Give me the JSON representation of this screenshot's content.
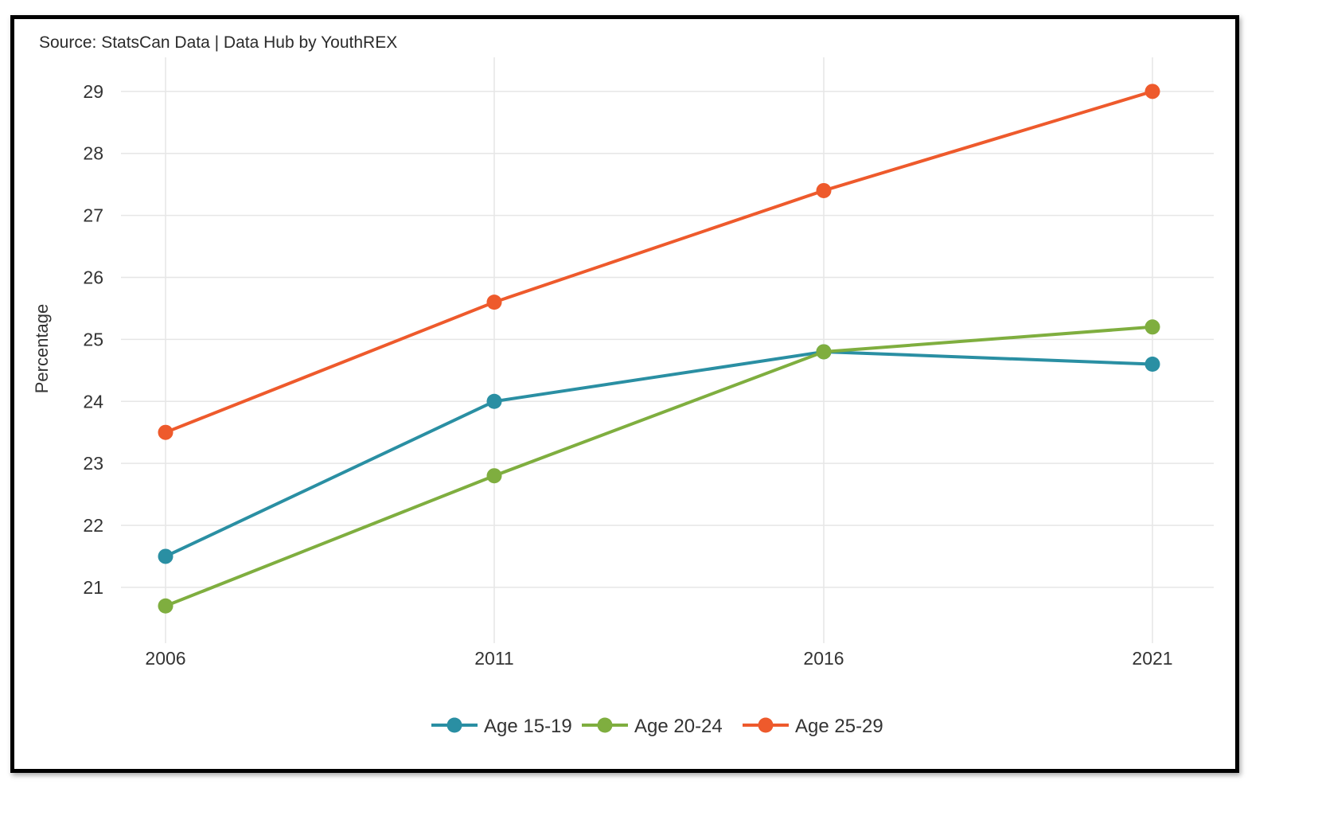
{
  "source_note": "Source: StatsCan Data | Data Hub by YouthREX",
  "chart_data": {
    "type": "line",
    "title": "",
    "xlabel": "",
    "ylabel": "Percentage",
    "x": [
      "2006",
      "2011",
      "2016",
      "2021"
    ],
    "ylim": [
      20.1,
      29.55
    ],
    "yticks": [
      21,
      22,
      23,
      24,
      25,
      26,
      27,
      28,
      29
    ],
    "grid": true,
    "legend_position": "bottom",
    "series": [
      {
        "name": "Age 15-19",
        "color": "#2a8fa3",
        "values": [
          21.5,
          24.0,
          24.8,
          24.6
        ]
      },
      {
        "name": "Age 20-24",
        "color": "#7fae3f",
        "values": [
          20.7,
          22.8,
          24.8,
          25.2
        ]
      },
      {
        "name": "Age 25-29",
        "color": "#ee5a2c",
        "values": [
          23.5,
          25.6,
          27.4,
          29.0
        ]
      }
    ]
  }
}
